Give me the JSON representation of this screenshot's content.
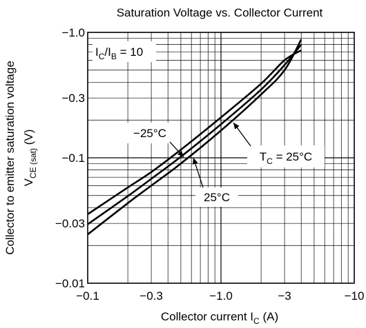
{
  "chart_data": {
    "type": "line",
    "title": "Saturation Voltage vs. Collector Current",
    "xlabel": {
      "main": "Collector current  I",
      "sub": "C",
      "unit": "  (A)"
    },
    "ylabel": {
      "line1": "Collector to emitter saturation voltage",
      "main": "V",
      "sub": "CE (sat)",
      "unit": "   (V)"
    },
    "x_scale": "log",
    "y_scale": "log",
    "xlim": [
      -0.1,
      -10
    ],
    "ylim": [
      -0.01,
      -1.0
    ],
    "x_ticks": [
      {
        "value": -0.1,
        "label": "−0.1"
      },
      {
        "value": -0.3,
        "label": "−0.3"
      },
      {
        "value": -1.0,
        "label": "−1.0"
      },
      {
        "value": -3,
        "label": "−3"
      },
      {
        "value": -10,
        "label": "−10"
      }
    ],
    "y_ticks": [
      {
        "value": -1.0,
        "label": "−1.0"
      },
      {
        "value": -0.3,
        "label": "−0.3"
      },
      {
        "value": -0.1,
        "label": "−0.1"
      },
      {
        "value": -0.03,
        "label": "−0.03"
      },
      {
        "value": -0.01,
        "label": "−0.01"
      }
    ],
    "grid": true,
    "condition": {
      "main": "I",
      "sub1": "C",
      "mid": "/I",
      "sub2": "B",
      "tail": " = 10"
    },
    "series": [
      {
        "name": "−25°C",
        "x": [
          -0.1,
          -0.2,
          -0.3,
          -0.5,
          -1.0,
          -2.0,
          -3.0,
          -4.0
        ],
        "y": [
          -0.0245,
          -0.0435,
          -0.06,
          -0.09,
          -0.165,
          -0.32,
          -0.5,
          -0.88
        ]
      },
      {
        "name": "25°C",
        "x": [
          -0.1,
          -0.2,
          -0.3,
          -0.5,
          -1.0,
          -2.0,
          -3.0,
          -4.0
        ],
        "y": [
          -0.0295,
          -0.0495,
          -0.068,
          -0.102,
          -0.185,
          -0.35,
          -0.55,
          -0.8
        ]
      },
      {
        "name": "T_C = 25°C",
        "x": [
          -0.1,
          -0.2,
          -0.3,
          -0.5,
          -1.0,
          -2.0,
          -3.0,
          -4.0
        ],
        "y": [
          -0.0355,
          -0.058,
          -0.077,
          -0.116,
          -0.21,
          -0.39,
          -0.6,
          -0.72
        ]
      }
    ],
    "annotations": [
      {
        "main": "−25°C",
        "series": 0
      },
      {
        "main": "25°C",
        "series": 1
      },
      {
        "main": "T",
        "sub": "C",
        "tail": " = 25°C",
        "series": 2
      }
    ]
  }
}
